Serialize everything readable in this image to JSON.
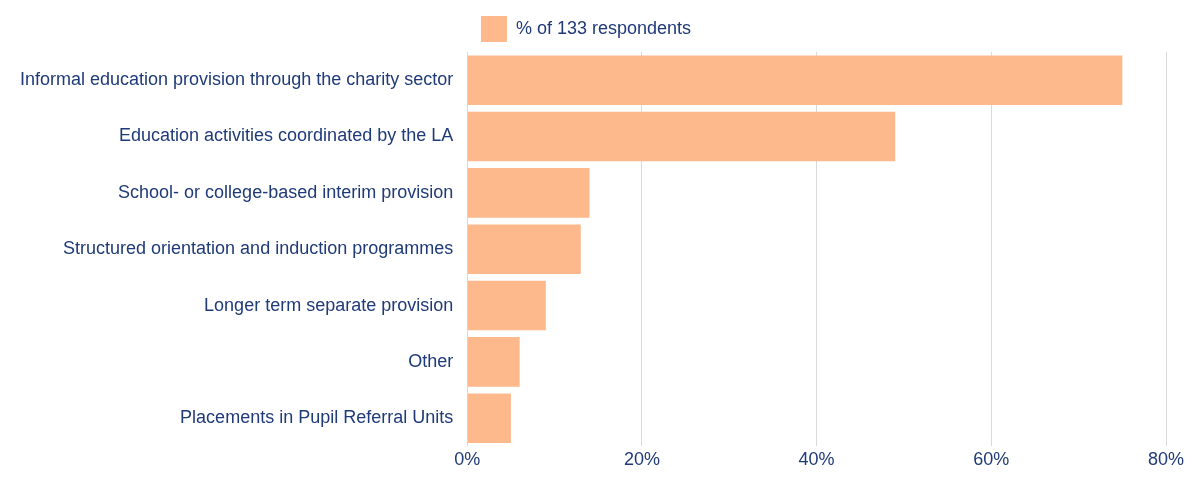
{
  "chart_data": {
    "type": "bar",
    "orientation": "horizontal",
    "categories": [
      "Informal education provision through the charity sector",
      "Education activities coordinated by the LA",
      "School- or college-based interim provision",
      "Structured orientation and induction programmes",
      "Longer term separate provision",
      "Other",
      "Placements in Pupil Referral Units"
    ],
    "series": [
      {
        "name": "% of 133 respondents",
        "color": "#fdb98c",
        "values": [
          75,
          49,
          14,
          13,
          9,
          6,
          5
        ]
      }
    ],
    "xlim": [
      0,
      80
    ],
    "xticks": [
      {
        "value": 0,
        "label": "0%"
      },
      {
        "value": 20,
        "label": "20%"
      },
      {
        "value": 40,
        "label": "40%"
      },
      {
        "value": 60,
        "label": "60%"
      },
      {
        "value": 80,
        "label": "80%"
      }
    ],
    "grid": "x",
    "legend": "top"
  }
}
